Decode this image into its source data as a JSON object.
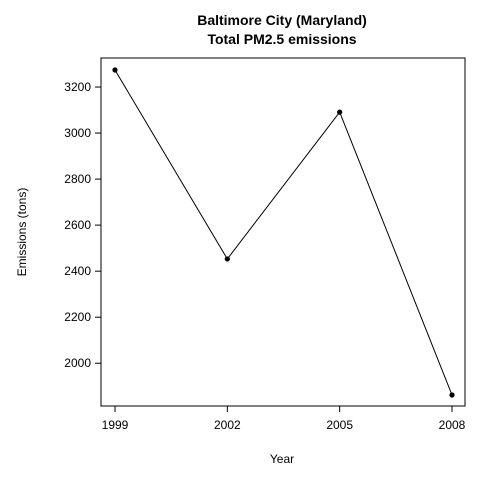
{
  "chart_data": {
    "type": "line",
    "title": "Baltimore City (Maryland)",
    "subtitle": "Total PM2.5 emissions",
    "xlabel": "Year",
    "ylabel": "Emissions (tons)",
    "x": [
      1999,
      2002,
      2005,
      2008
    ],
    "values": [
      3274,
      2453,
      3091,
      1862
    ],
    "x_ticks": [
      "1999",
      "2002",
      "2005",
      "2008"
    ],
    "y_ticks": [
      "2000",
      "2200",
      "2400",
      "2600",
      "2800",
      "3000",
      "3200"
    ],
    "xlim": [
      1999,
      2008
    ],
    "ylim": [
      1862,
      3274
    ],
    "grid": false,
    "line_color": "#000000",
    "marker_color": "#000000"
  }
}
